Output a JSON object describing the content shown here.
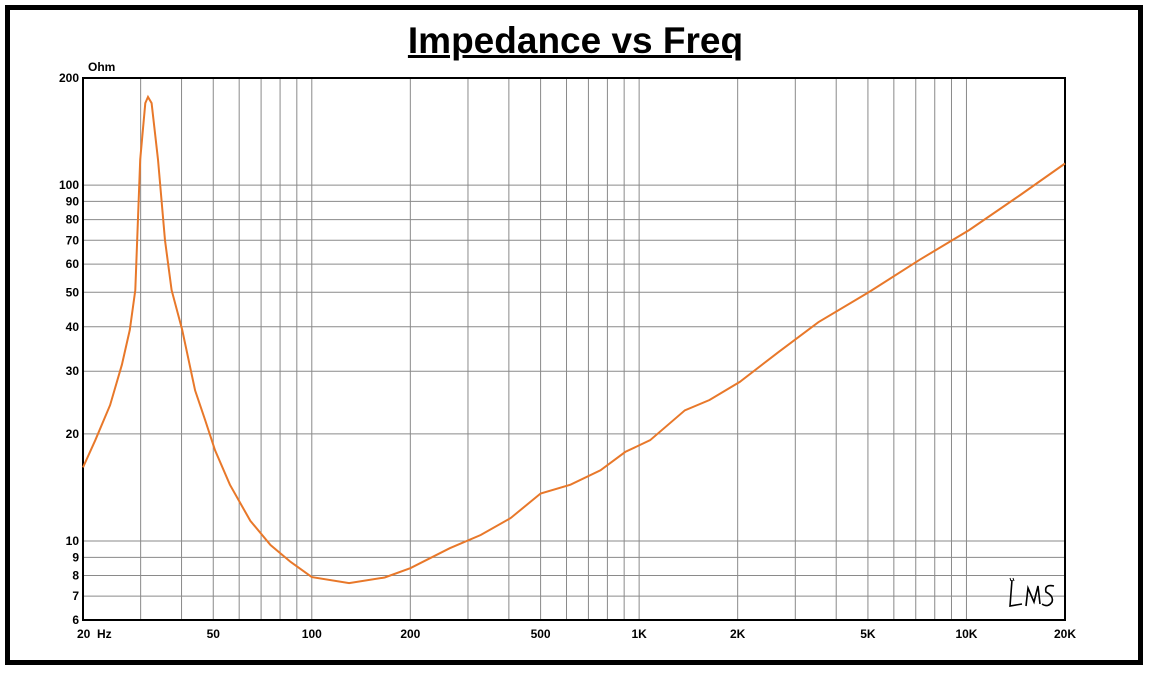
{
  "chart_data": {
    "type": "line",
    "title": "Impedance vs Freq",
    "ylabel": "Ohm",
    "xlabel": "",
    "x_scale": "log",
    "y_scale": "log",
    "xlim": [
      20,
      20000
    ],
    "ylim": [
      6,
      200
    ],
    "grid": true,
    "x_tick_labels": [
      {
        "value": 20,
        "label": "20  Hz"
      },
      {
        "value": 50,
        "label": "50"
      },
      {
        "value": 100,
        "label": "100"
      },
      {
        "value": 200,
        "label": "200"
      },
      {
        "value": 500,
        "label": "500"
      },
      {
        "value": 1000,
        "label": "1K"
      },
      {
        "value": 2000,
        "label": "2K"
      },
      {
        "value": 5000,
        "label": "5K"
      },
      {
        "value": 10000,
        "label": "10K"
      },
      {
        "value": 20000,
        "label": "20K"
      }
    ],
    "y_tick_labels": [
      {
        "value": 200,
        "label": "200"
      },
      {
        "value": 100,
        "label": "100"
      },
      {
        "value": 90,
        "label": "90"
      },
      {
        "value": 80,
        "label": "80"
      },
      {
        "value": 70,
        "label": "70"
      },
      {
        "value": 60,
        "label": "60"
      },
      {
        "value": 50,
        "label": "50"
      },
      {
        "value": 40,
        "label": "40"
      },
      {
        "value": 30,
        "label": "30"
      },
      {
        "value": 20,
        "label": "20"
      },
      {
        "value": 10,
        "label": "10"
      },
      {
        "value": 9,
        "label": "9"
      },
      {
        "value": 8,
        "label": "8"
      },
      {
        "value": 7,
        "label": "7"
      },
      {
        "value": 6,
        "label": "6"
      }
    ],
    "series": [
      {
        "color": "#E8782A",
        "x": [
          20,
          21.8,
          24.2,
          26.3,
          27.8,
          28.9,
          29.9,
          31.0,
          31.6,
          32.4,
          33.9,
          35.6,
          37.3,
          40.2,
          44.0,
          47.2,
          50.6,
          56.2,
          64.9,
          74.8,
          86.2,
          100,
          130,
          167,
          200,
          264,
          328,
          405,
          500,
          617,
          762,
          907,
          1080,
          1380,
          1640,
          2030,
          2670,
          3530,
          5040,
          7190,
          10200,
          14600,
          20000
        ],
        "y": [
          16.1,
          19.2,
          24.1,
          31.3,
          39.2,
          50.7,
          118,
          170,
          177,
          170,
          118,
          70,
          50.7,
          39.2,
          26.5,
          21.9,
          18.0,
          14.4,
          11.4,
          9.75,
          8.73,
          7.92,
          7.62,
          7.9,
          8.39,
          9.55,
          10.4,
          11.6,
          13.6,
          14.4,
          15.8,
          17.8,
          19.2,
          23.3,
          24.9,
          28.0,
          34.0,
          41.2,
          50.1,
          61.7,
          74.8,
          93.8,
          115
        ]
      }
    ]
  },
  "watermark": "LMS"
}
